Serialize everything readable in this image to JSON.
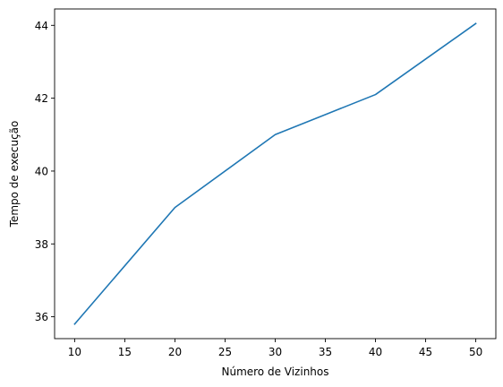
{
  "chart_data": {
    "type": "line",
    "title": "",
    "xlabel": "Número de Vizinhos",
    "ylabel": "Tempo de execução",
    "x": [
      10,
      20,
      30,
      40,
      50
    ],
    "series": [
      {
        "values": [
          35.8,
          39.0,
          41.0,
          42.1,
          44.05
        ],
        "color": "#1f77b4"
      }
    ],
    "xlim": [
      8.0,
      52.0
    ],
    "ylim": [
      35.4,
      44.45
    ],
    "xticks": [
      10,
      15,
      20,
      25,
      30,
      35,
      40,
      45,
      50
    ],
    "yticks": [
      36,
      38,
      40,
      42,
      44
    ],
    "grid": false,
    "legend": "none"
  }
}
